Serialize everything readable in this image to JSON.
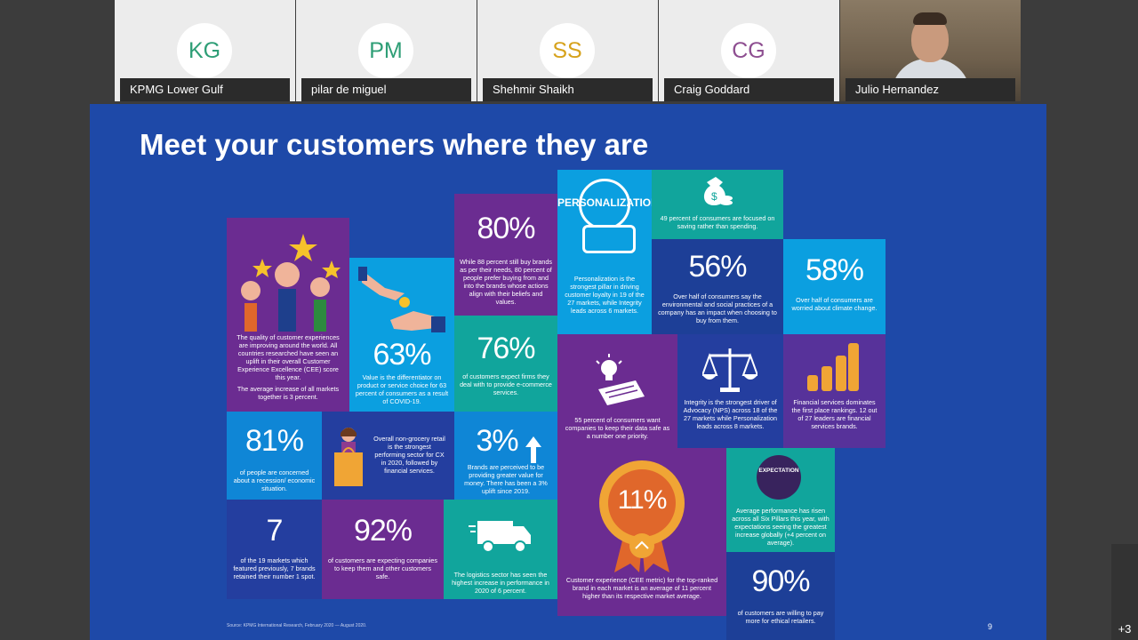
{
  "participants": [
    {
      "initials": "KG",
      "name": "KPMG Lower Gulf",
      "color": "#2e9e76"
    },
    {
      "initials": "PM",
      "name": "pilar de miguel",
      "color": "#2e9e76"
    },
    {
      "initials": "SS",
      "name": "Shehmir Shaikh",
      "color": "#d6a21c"
    },
    {
      "initials": "CG",
      "name": "Craig Goddard",
      "color": "#8e4f91"
    },
    {
      "initials": "",
      "name": "Julio Hernandez",
      "color": ""
    }
  ],
  "more_count": "+3",
  "slide": {
    "title": "Meet your customers where they are",
    "source": "Source: KPMG International Research, February 2020 — August 2020.",
    "page_number": "9",
    "cells": {
      "quality": {
        "text1": "The quality of customer experiences are improving around the world. All countries researched have seen an uplift in their overall Customer Experience Excellence (CEE) score this year.",
        "text2": "The average increase of all markets together is 3 percent."
      },
      "eighty": {
        "stat": "80%",
        "text": "While 88 percent still buy brands as per their needs, 80 percent of people prefer buying from and into the brands whose actions align with their beliefs and values."
      },
      "personalization": {
        "badge": "PERSONALIZATION",
        "text": "Personalization is the strongest pillar in driving customer loyalty in 19 of the 27 markets, while Integrity leads across 6 markets."
      },
      "saving": {
        "text": "49 percent of consumers are focused on saving rather than spending."
      },
      "sixtythree": {
        "stat": "63%",
        "text": "Value is the differentiator on product or service choice for 63 percent of consumers as a result of COVID-19."
      },
      "seventysix": {
        "stat": "76%",
        "text": "of customers expect firms they deal with to provide e-commerce services."
      },
      "fiftysix": {
        "stat": "56%",
        "text": "Over half of consumers say the environmental and social practices of a company has an impact when choosing to buy from them."
      },
      "fiftyeight": {
        "stat": "58%",
        "text": "Over half of consumers are worried about climate change."
      },
      "datasafe": {
        "text": "55 percent of consumers want companies to keep their data safe as a number one priority."
      },
      "integrity": {
        "text": "Integrity is the strongest driver of Advocacy (NPS) across 18 of the 27 markets while Personalization leads across 8 markets."
      },
      "financial": {
        "text": "Financial services dominates the first place rankings. 12 out of 27 leaders are financial services brands."
      },
      "eightyone": {
        "stat": "81%",
        "text": "of people are concerned about a recession/ economic situation."
      },
      "grocery": {
        "text": "Overall non-grocery retail is the strongest performing sector for CX in 2020, followed by financial services."
      },
      "three": {
        "stat": "3%",
        "text": "Brands are perceived to be providing greater value for money. There has been a 3% uplift since 2019."
      },
      "eleven": {
        "stat": "11%",
        "text": "Customer experience (CEE metric) for the top-ranked brand in each market is an average of 11 percent higher than its respective market average."
      },
      "expectation": {
        "badge": "EXPECTATION",
        "text": "Average performance has risen across all Six Pillars this year, with expectations seeing the greatest increase globally (+4 percent on average)."
      },
      "seven": {
        "stat": "7",
        "text": "of the 19 markets which featured previously, 7 brands retained their number 1 spot."
      },
      "ninetytwo": {
        "stat": "92%",
        "text": "of customers are expecting companies to keep them and other customers safe."
      },
      "logistics": {
        "text": "The logistics sector has seen the highest increase in performance in 2020 of 6 percent."
      },
      "ninety": {
        "stat": "90%",
        "text": "of customers are willing to pay more for ethical retailers."
      }
    }
  }
}
